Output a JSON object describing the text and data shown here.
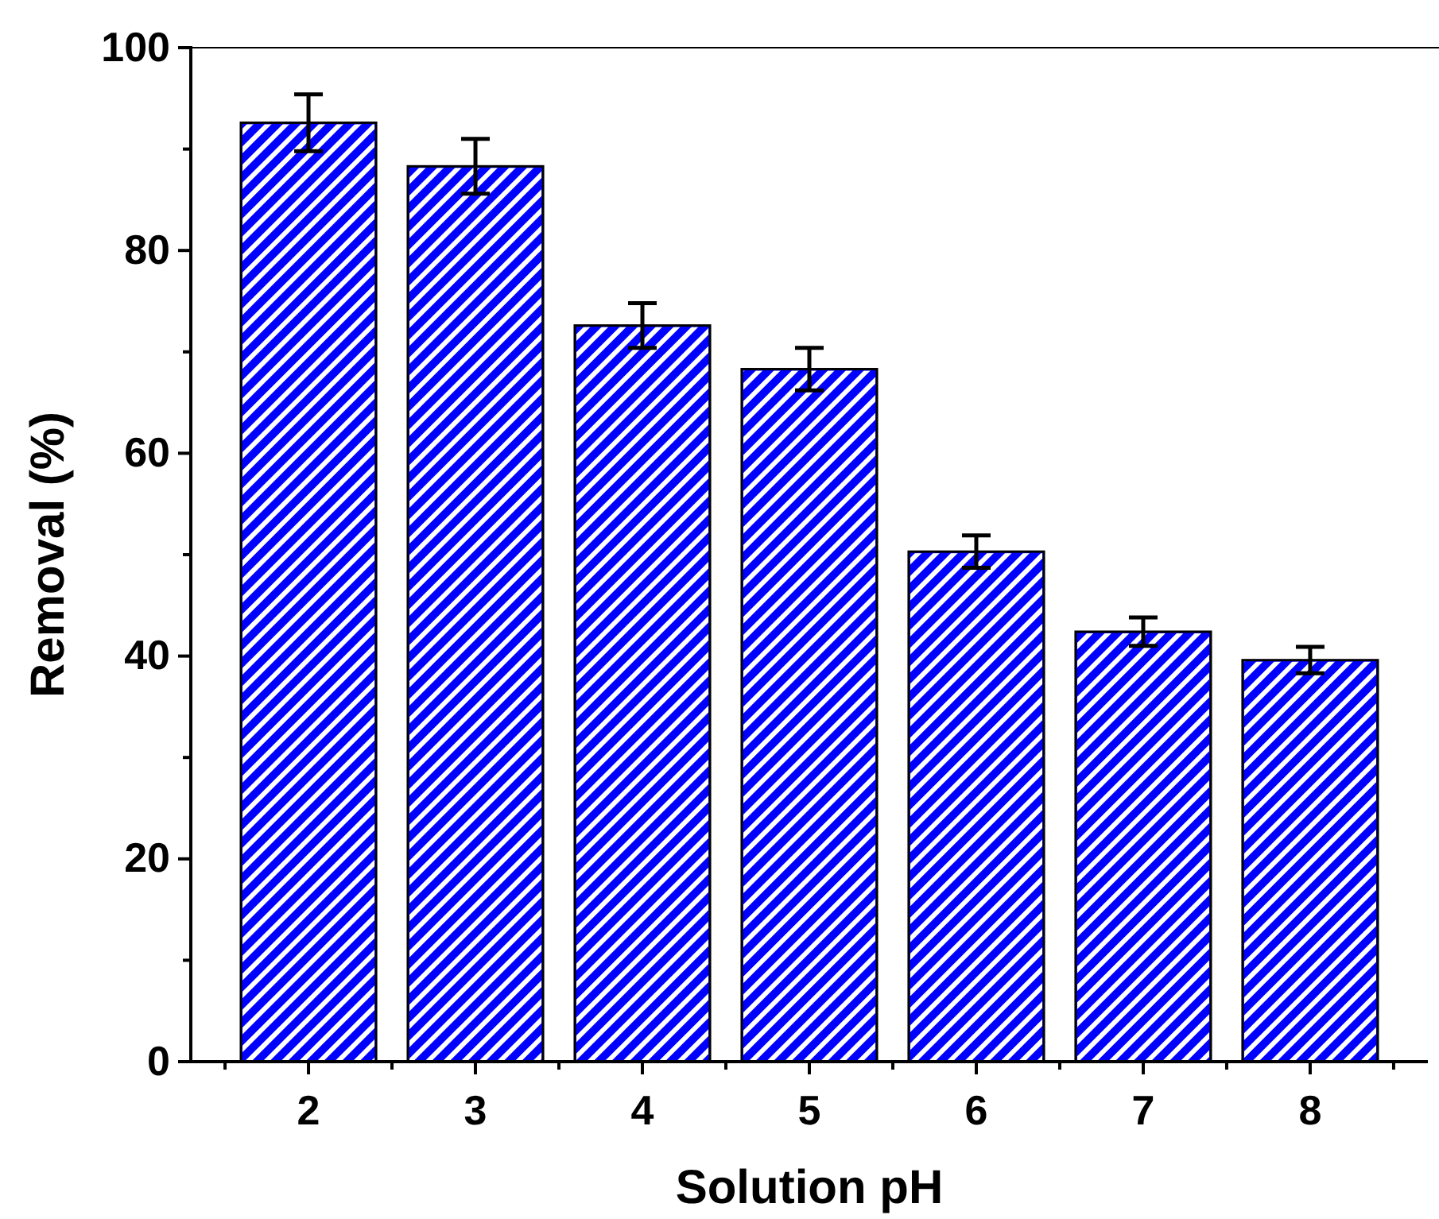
{
  "chart_data": {
    "type": "bar",
    "xlabel": "Solution pH",
    "ylabel": "Removal (%)",
    "categories": [
      "2",
      "3",
      "4",
      "5",
      "6",
      "7",
      "8"
    ],
    "values": [
      92.6,
      88.3,
      72.6,
      68.3,
      50.3,
      42.4,
      39.6
    ],
    "errors": [
      2.8,
      2.7,
      2.2,
      2.1,
      1.6,
      1.4,
      1.3
    ],
    "color": "#0000ff",
    "ylim": [
      0,
      100
    ],
    "yticks": [
      0,
      20,
      40,
      60,
      80,
      100
    ]
  }
}
